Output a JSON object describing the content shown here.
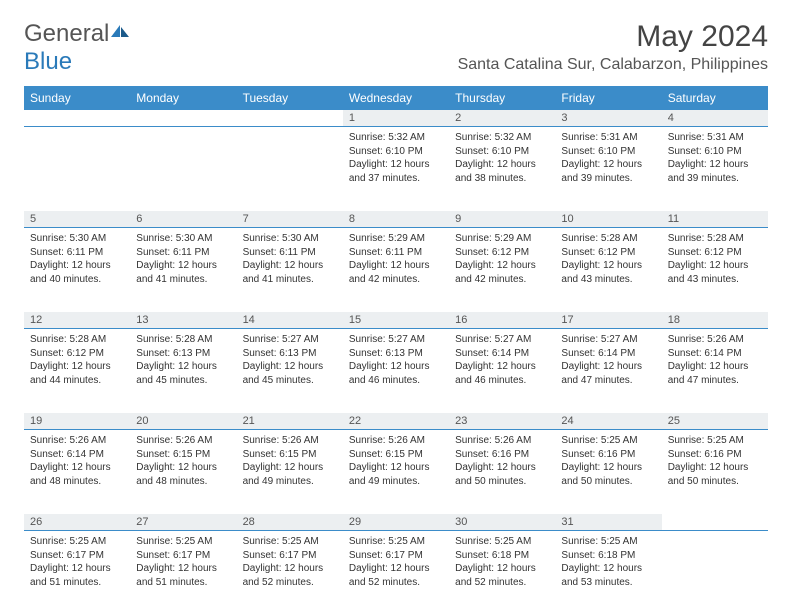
{
  "logo": {
    "part1": "General",
    "part2": "Blue"
  },
  "title": "May 2024",
  "location": "Santa Catalina Sur, Calabarzon, Philippines",
  "colors": {
    "header_bg": "#3b8cc9",
    "header_text": "#ffffff",
    "daynum_bg": "#eceff1",
    "border": "#3b8cc9",
    "text": "#333333",
    "logo_gray": "#555555",
    "logo_blue": "#2a7ab9"
  },
  "dayNames": [
    "Sunday",
    "Monday",
    "Tuesday",
    "Wednesday",
    "Thursday",
    "Friday",
    "Saturday"
  ],
  "weeks": [
    {
      "nums": [
        "",
        "",
        "",
        "1",
        "2",
        "3",
        "4"
      ],
      "cells": [
        null,
        null,
        null,
        {
          "sunrise": "5:32 AM",
          "sunset": "6:10 PM",
          "daylight": "12 hours and 37 minutes."
        },
        {
          "sunrise": "5:32 AM",
          "sunset": "6:10 PM",
          "daylight": "12 hours and 38 minutes."
        },
        {
          "sunrise": "5:31 AM",
          "sunset": "6:10 PM",
          "daylight": "12 hours and 39 minutes."
        },
        {
          "sunrise": "5:31 AM",
          "sunset": "6:10 PM",
          "daylight": "12 hours and 39 minutes."
        }
      ]
    },
    {
      "nums": [
        "5",
        "6",
        "7",
        "8",
        "9",
        "10",
        "11"
      ],
      "cells": [
        {
          "sunrise": "5:30 AM",
          "sunset": "6:11 PM",
          "daylight": "12 hours and 40 minutes."
        },
        {
          "sunrise": "5:30 AM",
          "sunset": "6:11 PM",
          "daylight": "12 hours and 41 minutes."
        },
        {
          "sunrise": "5:30 AM",
          "sunset": "6:11 PM",
          "daylight": "12 hours and 41 minutes."
        },
        {
          "sunrise": "5:29 AM",
          "sunset": "6:11 PM",
          "daylight": "12 hours and 42 minutes."
        },
        {
          "sunrise": "5:29 AM",
          "sunset": "6:12 PM",
          "daylight": "12 hours and 42 minutes."
        },
        {
          "sunrise": "5:28 AM",
          "sunset": "6:12 PM",
          "daylight": "12 hours and 43 minutes."
        },
        {
          "sunrise": "5:28 AM",
          "sunset": "6:12 PM",
          "daylight": "12 hours and 43 minutes."
        }
      ]
    },
    {
      "nums": [
        "12",
        "13",
        "14",
        "15",
        "16",
        "17",
        "18"
      ],
      "cells": [
        {
          "sunrise": "5:28 AM",
          "sunset": "6:12 PM",
          "daylight": "12 hours and 44 minutes."
        },
        {
          "sunrise": "5:28 AM",
          "sunset": "6:13 PM",
          "daylight": "12 hours and 45 minutes."
        },
        {
          "sunrise": "5:27 AM",
          "sunset": "6:13 PM",
          "daylight": "12 hours and 45 minutes."
        },
        {
          "sunrise": "5:27 AM",
          "sunset": "6:13 PM",
          "daylight": "12 hours and 46 minutes."
        },
        {
          "sunrise": "5:27 AM",
          "sunset": "6:14 PM",
          "daylight": "12 hours and 46 minutes."
        },
        {
          "sunrise": "5:27 AM",
          "sunset": "6:14 PM",
          "daylight": "12 hours and 47 minutes."
        },
        {
          "sunrise": "5:26 AM",
          "sunset": "6:14 PM",
          "daylight": "12 hours and 47 minutes."
        }
      ]
    },
    {
      "nums": [
        "19",
        "20",
        "21",
        "22",
        "23",
        "24",
        "25"
      ],
      "cells": [
        {
          "sunrise": "5:26 AM",
          "sunset": "6:14 PM",
          "daylight": "12 hours and 48 minutes."
        },
        {
          "sunrise": "5:26 AM",
          "sunset": "6:15 PM",
          "daylight": "12 hours and 48 minutes."
        },
        {
          "sunrise": "5:26 AM",
          "sunset": "6:15 PM",
          "daylight": "12 hours and 49 minutes."
        },
        {
          "sunrise": "5:26 AM",
          "sunset": "6:15 PM",
          "daylight": "12 hours and 49 minutes."
        },
        {
          "sunrise": "5:26 AM",
          "sunset": "6:16 PM",
          "daylight": "12 hours and 50 minutes."
        },
        {
          "sunrise": "5:25 AM",
          "sunset": "6:16 PM",
          "daylight": "12 hours and 50 minutes."
        },
        {
          "sunrise": "5:25 AM",
          "sunset": "6:16 PM",
          "daylight": "12 hours and 50 minutes."
        }
      ]
    },
    {
      "nums": [
        "26",
        "27",
        "28",
        "29",
        "30",
        "31",
        ""
      ],
      "cells": [
        {
          "sunrise": "5:25 AM",
          "sunset": "6:17 PM",
          "daylight": "12 hours and 51 minutes."
        },
        {
          "sunrise": "5:25 AM",
          "sunset": "6:17 PM",
          "daylight": "12 hours and 51 minutes."
        },
        {
          "sunrise": "5:25 AM",
          "sunset": "6:17 PM",
          "daylight": "12 hours and 52 minutes."
        },
        {
          "sunrise": "5:25 AM",
          "sunset": "6:17 PM",
          "daylight": "12 hours and 52 minutes."
        },
        {
          "sunrise": "5:25 AM",
          "sunset": "6:18 PM",
          "daylight": "12 hours and 52 minutes."
        },
        {
          "sunrise": "5:25 AM",
          "sunset": "6:18 PM",
          "daylight": "12 hours and 53 minutes."
        },
        null
      ]
    }
  ],
  "labels": {
    "sunrise": "Sunrise:",
    "sunset": "Sunset:",
    "daylight": "Daylight:"
  }
}
